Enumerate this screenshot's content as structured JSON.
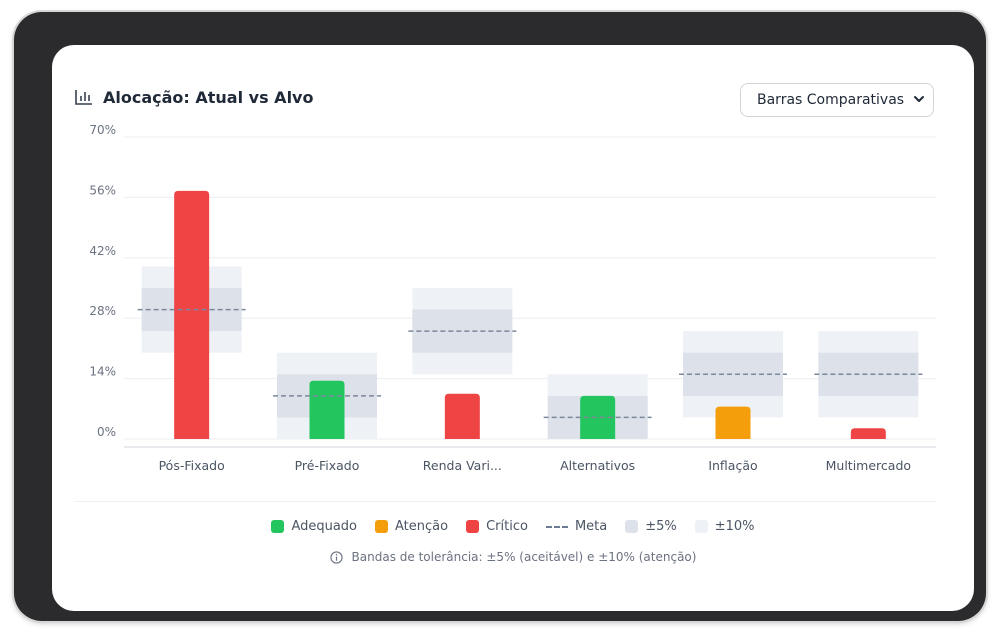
{
  "header": {
    "title": "Alocação: Atual vs Alvo",
    "icon": "bar-chart-icon"
  },
  "view_select": {
    "selected": "Barras Comparativas"
  },
  "legend": {
    "items": [
      {
        "label": "Adequado",
        "color": "#22c55e",
        "kind": "swatch"
      },
      {
        "label": "Atenção",
        "color": "#f59e0b",
        "kind": "swatch"
      },
      {
        "label": "Crítico",
        "color": "#ef4444",
        "kind": "swatch"
      },
      {
        "label": "Meta",
        "color": "#6b7a90",
        "kind": "dash"
      },
      {
        "label": "±5%",
        "color": "#dde2ea",
        "kind": "swatch"
      },
      {
        "label": "±10%",
        "color": "#eef1f5",
        "kind": "swatch"
      }
    ]
  },
  "note": {
    "text": "Bandas de tolerância: ±5% (aceitável) e ±10% (atenção)",
    "icon": "info-icon"
  },
  "chart_data": {
    "type": "bar",
    "categories": [
      "Pós-Fixado",
      "Pré-Fixado",
      "Renda Vari...",
      "Alternativos",
      "Inflação",
      "Multimercado"
    ],
    "series": [
      {
        "name": "Atual",
        "values": [
          57.5,
          13.5,
          10.5,
          10,
          7.5,
          2.5
        ]
      },
      {
        "name": "Meta",
        "values": [
          30,
          10,
          25,
          5,
          15,
          15
        ]
      }
    ],
    "status": [
      "Crítico",
      "Adequado",
      "Crítico",
      "Adequado",
      "Atenção",
      "Crítico"
    ],
    "status_colors": {
      "Adequado": "#22c55e",
      "Atenção": "#f59e0b",
      "Crítico": "#ef4444"
    },
    "tolerance_bands": [
      5,
      10
    ],
    "yticks": [
      0,
      14,
      28,
      42,
      56,
      70
    ],
    "ytick_labels": [
      "0%",
      "14%",
      "28%",
      "42%",
      "56%",
      "70%"
    ],
    "ylim": [
      0,
      70
    ],
    "grid": true
  }
}
